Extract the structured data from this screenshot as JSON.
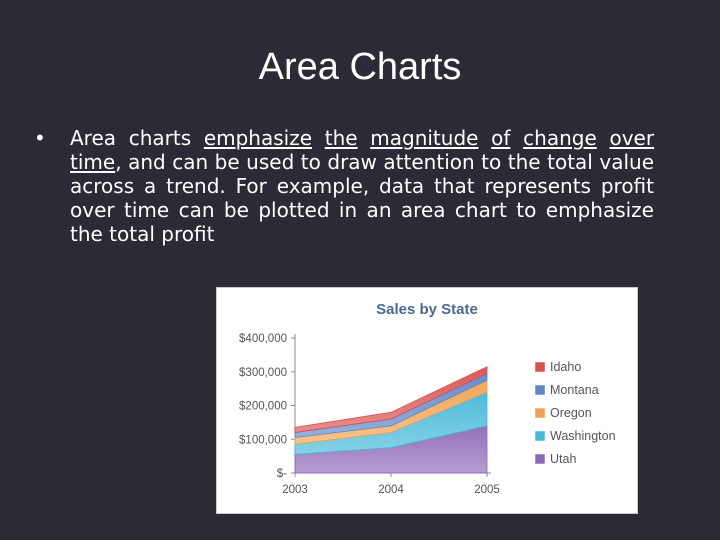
{
  "slide": {
    "title": "Area Charts",
    "bullet_marker": "•",
    "bullet_parts": [
      {
        "text": "Area charts ",
        "underline": false
      },
      {
        "text": "emphasize",
        "underline": true
      },
      {
        "text": " ",
        "underline": false
      },
      {
        "text": "the",
        "underline": true
      },
      {
        "text": " ",
        "underline": false
      },
      {
        "text": "magnitude",
        "underline": true
      },
      {
        "text": " ",
        "underline": false
      },
      {
        "text": "of",
        "underline": true
      },
      {
        "text": " ",
        "underline": false
      },
      {
        "text": "change",
        "underline": true
      },
      {
        "text": " ",
        "underline": false
      },
      {
        "text": "over time",
        "underline": true
      },
      {
        "text": ", and can be used to draw attention to the total value across a trend. For example, data that represents profit over time can be plotted in an area chart to emphasize the total profit",
        "underline": false
      }
    ]
  },
  "chart_data": {
    "type": "area",
    "stacked": true,
    "title": "Sales by State",
    "xlabel": "",
    "ylabel": "",
    "categories": [
      "2003",
      "2004",
      "2005"
    ],
    "ylim": [
      0,
      400000
    ],
    "ytick_values": [
      0,
      100000,
      200000,
      300000,
      400000
    ],
    "ytick_labels": [
      "$-",
      "$100,000",
      "$200,000",
      "$300,000",
      "$400,000"
    ],
    "legend_position": "right",
    "grid": false,
    "series": [
      {
        "name": "Utah",
        "values": [
          55000,
          75000,
          140000
        ],
        "color": "#8e68b8"
      },
      {
        "name": "Washington",
        "values": [
          30000,
          45000,
          100000
        ],
        "color": "#45b8d8"
      },
      {
        "name": "Oregon",
        "values": [
          20000,
          20000,
          35000
        ],
        "color": "#f0a250"
      },
      {
        "name": "Montana",
        "values": [
          15000,
          20000,
          20000
        ],
        "color": "#5b86c8"
      },
      {
        "name": "Idaho",
        "values": [
          15000,
          20000,
          20000
        ],
        "color": "#d9504c"
      }
    ],
    "legend_order": [
      "Idaho",
      "Montana",
      "Oregon",
      "Washington",
      "Utah"
    ]
  }
}
